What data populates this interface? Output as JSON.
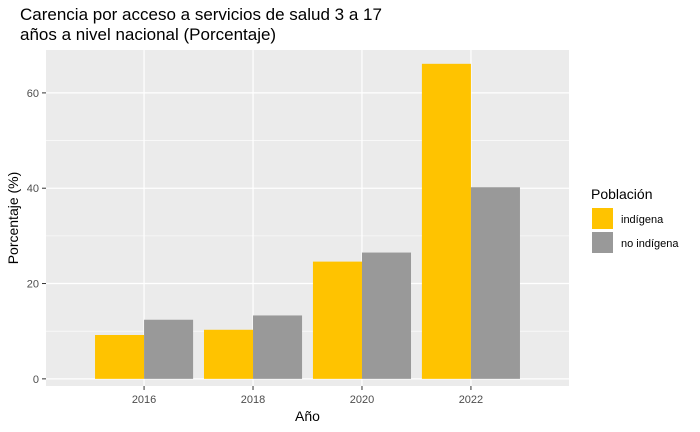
{
  "chart_data": {
    "type": "bar",
    "title_lines": [
      "Carencia por acceso a servicios de salud 3 a 17",
      "años a nivel nacional (Porcentaje)"
    ],
    "xlabel": "Año",
    "ylabel": "Porcentaje (%)",
    "categories": [
      "2016",
      "2018",
      "2020",
      "2022"
    ],
    "yticks": [
      0,
      20,
      40,
      60
    ],
    "ylim": [
      -1.5,
      69
    ],
    "grid": true,
    "legend": {
      "title": "Población",
      "placement": "right"
    },
    "series": [
      {
        "name": "indígena",
        "color": "#FFC300",
        "values": [
          9.2,
          10.3,
          24.6,
          66.1
        ]
      },
      {
        "name": "no indígena",
        "color": "#999999",
        "values": [
          12.4,
          13.3,
          26.5,
          40.2
        ]
      }
    ]
  }
}
